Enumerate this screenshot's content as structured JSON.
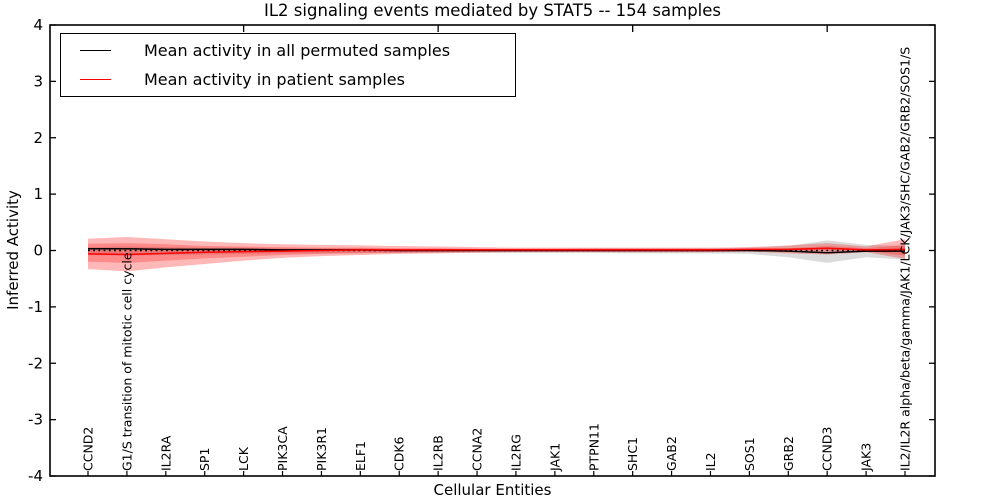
{
  "title": "IL2 signaling events mediated by STAT5 -- 154 samples",
  "legend": {
    "position": "upper left",
    "items": [
      {
        "label": "Mean activity in all permuted samples",
        "color": "#000000"
      },
      {
        "label": "Mean activity in patient samples",
        "color": "#ff0000"
      }
    ]
  },
  "chart_data": {
    "type": "line",
    "title": "IL2 signaling events mediated by STAT5 -- 154 samples",
    "xlabel": "Cellular Entities",
    "ylabel": "Inferred Activity",
    "ylim": [
      -4,
      4
    ],
    "y_ticks": [
      4,
      3,
      2,
      1,
      0,
      -1,
      -2,
      -3,
      -4
    ],
    "grid": false,
    "legend_position": "upper left",
    "categories": [
      "CCND2",
      "G1/S transition of mitotic cell cycle",
      "IL2RA",
      "SP1",
      "LCK",
      "PIK3CA",
      "PIK3R1",
      "ELF1",
      "CDK6",
      "IL2RB",
      "CCNA2",
      "IL2RG",
      "JAK1",
      "PTPN11",
      "SHC1",
      "GAB2",
      "IL2",
      "SOS1",
      "GRB2",
      "CCND3",
      "JAK3",
      "IL2/IL2R alpha/beta/gamma/JAK1/LCK/JAK3/SHC/GAB2/GRB2/SOS1/S"
    ],
    "series": [
      {
        "name": "Mean activity in all permuted samples",
        "color": "#000000",
        "values": [
          0.03,
          0.03,
          0.02,
          0.02,
          0.02,
          0.01,
          0.01,
          0.01,
          0.0,
          0.0,
          0.0,
          0.0,
          0.0,
          0.0,
          0.0,
          0.0,
          0.0,
          0.0,
          -0.01,
          -0.04,
          -0.01,
          -0.01
        ]
      },
      {
        "name": "Mean activity in patient samples",
        "color": "#ff0000",
        "values": [
          -0.06,
          -0.07,
          -0.05,
          -0.03,
          -0.02,
          -0.01,
          0.0,
          0.01,
          0.01,
          0.01,
          0.01,
          0.01,
          0.01,
          0.01,
          0.01,
          0.01,
          0.01,
          0.02,
          0.02,
          0.04,
          0.01,
          0.02
        ]
      }
    ],
    "bands": [
      {
        "name": "permuted-samples-spread",
        "color": "#000000",
        "opacity": 0.14,
        "hi": [
          0.06,
          0.07,
          0.06,
          0.05,
          0.05,
          0.04,
          0.04,
          0.04,
          0.03,
          0.03,
          0.03,
          0.03,
          0.03,
          0.04,
          0.04,
          0.04,
          0.04,
          0.05,
          0.08,
          0.18,
          0.1,
          0.08
        ],
        "lo": [
          -0.08,
          -0.09,
          -0.08,
          -0.07,
          -0.06,
          -0.05,
          -0.05,
          -0.04,
          -0.04,
          -0.04,
          -0.04,
          -0.04,
          -0.04,
          -0.04,
          -0.05,
          -0.05,
          -0.05,
          -0.06,
          -0.12,
          -0.22,
          -0.12,
          -0.16
        ]
      },
      {
        "name": "patient-samples-spread-outer",
        "color": "#ff0000",
        "opacity": 0.28,
        "hi": [
          0.21,
          0.24,
          0.2,
          0.16,
          0.13,
          0.11,
          0.1,
          0.09,
          0.08,
          0.07,
          0.06,
          0.05,
          0.05,
          0.05,
          0.05,
          0.05,
          0.05,
          0.06,
          0.09,
          0.13,
          0.07,
          0.2
        ],
        "lo": [
          -0.33,
          -0.37,
          -0.3,
          -0.24,
          -0.18,
          -0.13,
          -0.1,
          -0.08,
          -0.06,
          -0.05,
          -0.04,
          -0.03,
          -0.03,
          -0.03,
          -0.03,
          -0.03,
          -0.03,
          -0.02,
          -0.05,
          -0.07,
          -0.03,
          -0.15
        ]
      },
      {
        "name": "patient-samples-spread-inner",
        "color": "#ff0000",
        "opacity": 0.25,
        "hi": [
          0.12,
          0.13,
          0.11,
          0.08,
          0.07,
          0.06,
          0.05,
          0.05,
          0.04,
          0.04,
          0.03,
          0.03,
          0.03,
          0.03,
          0.03,
          0.03,
          0.03,
          0.03,
          0.04,
          0.08,
          0.04,
          0.1
        ],
        "lo": [
          -0.2,
          -0.22,
          -0.18,
          -0.14,
          -0.11,
          -0.08,
          -0.06,
          -0.05,
          -0.04,
          -0.03,
          -0.02,
          -0.02,
          -0.02,
          -0.02,
          -0.02,
          -0.02,
          -0.02,
          -0.01,
          -0.02,
          0.0,
          -0.01,
          -0.09
        ]
      }
    ],
    "zero_line": {
      "y": 0,
      "style": "dotted",
      "color": "#000000"
    },
    "top_axis_tick_indices": [
      4,
      9,
      14,
      19
    ]
  }
}
